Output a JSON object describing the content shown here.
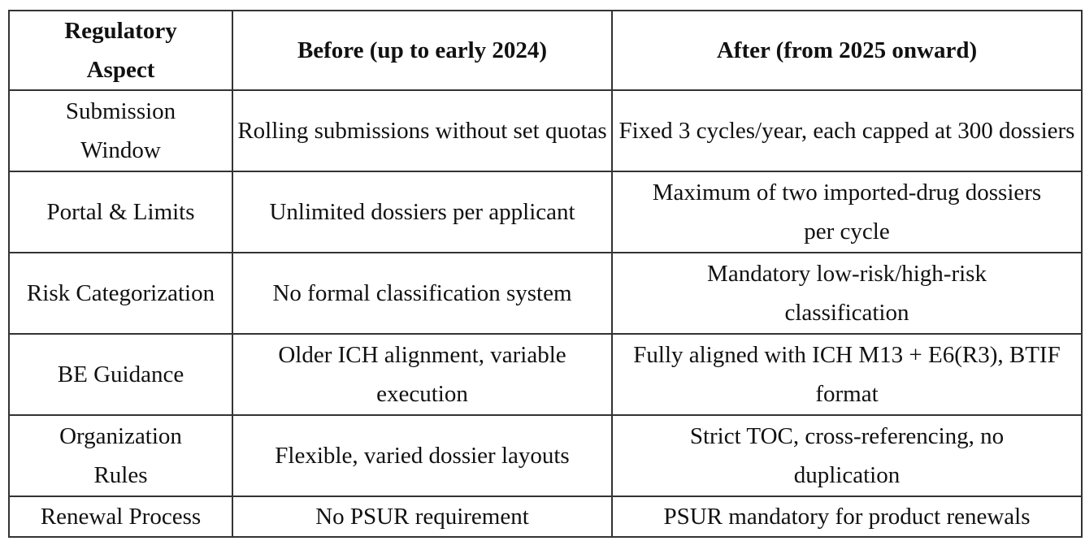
{
  "table": {
    "headers": [
      "Regulatory Aspect",
      "Before (up to early 2024)",
      "After (from 2025 onward)"
    ],
    "rows": [
      [
        "Submission Window",
        "Rolling submissions without set quotas",
        "Fixed 3 cycles/year, each capped at 300 dossiers"
      ],
      [
        "Portal & Limits",
        "Unlimited dossiers per applicant",
        "Maximum of two imported-drug dossiers per cycle"
      ],
      [
        "Risk Categorization",
        "No formal classification system",
        "Mandatory low-risk/high-risk classification"
      ],
      [
        "BE Guidance",
        "Older ICH alignment, variable execution",
        "Fully aligned with ICH M13 + E6(R3), BTIF format"
      ],
      [
        "Organization Rules",
        "Flexible, varied dossier layouts",
        "Strict TOC, cross-referencing, no duplication"
      ],
      [
        "Renewal Process",
        "No PSUR requirement",
        "PSUR mandatory for product renewals"
      ]
    ]
  }
}
